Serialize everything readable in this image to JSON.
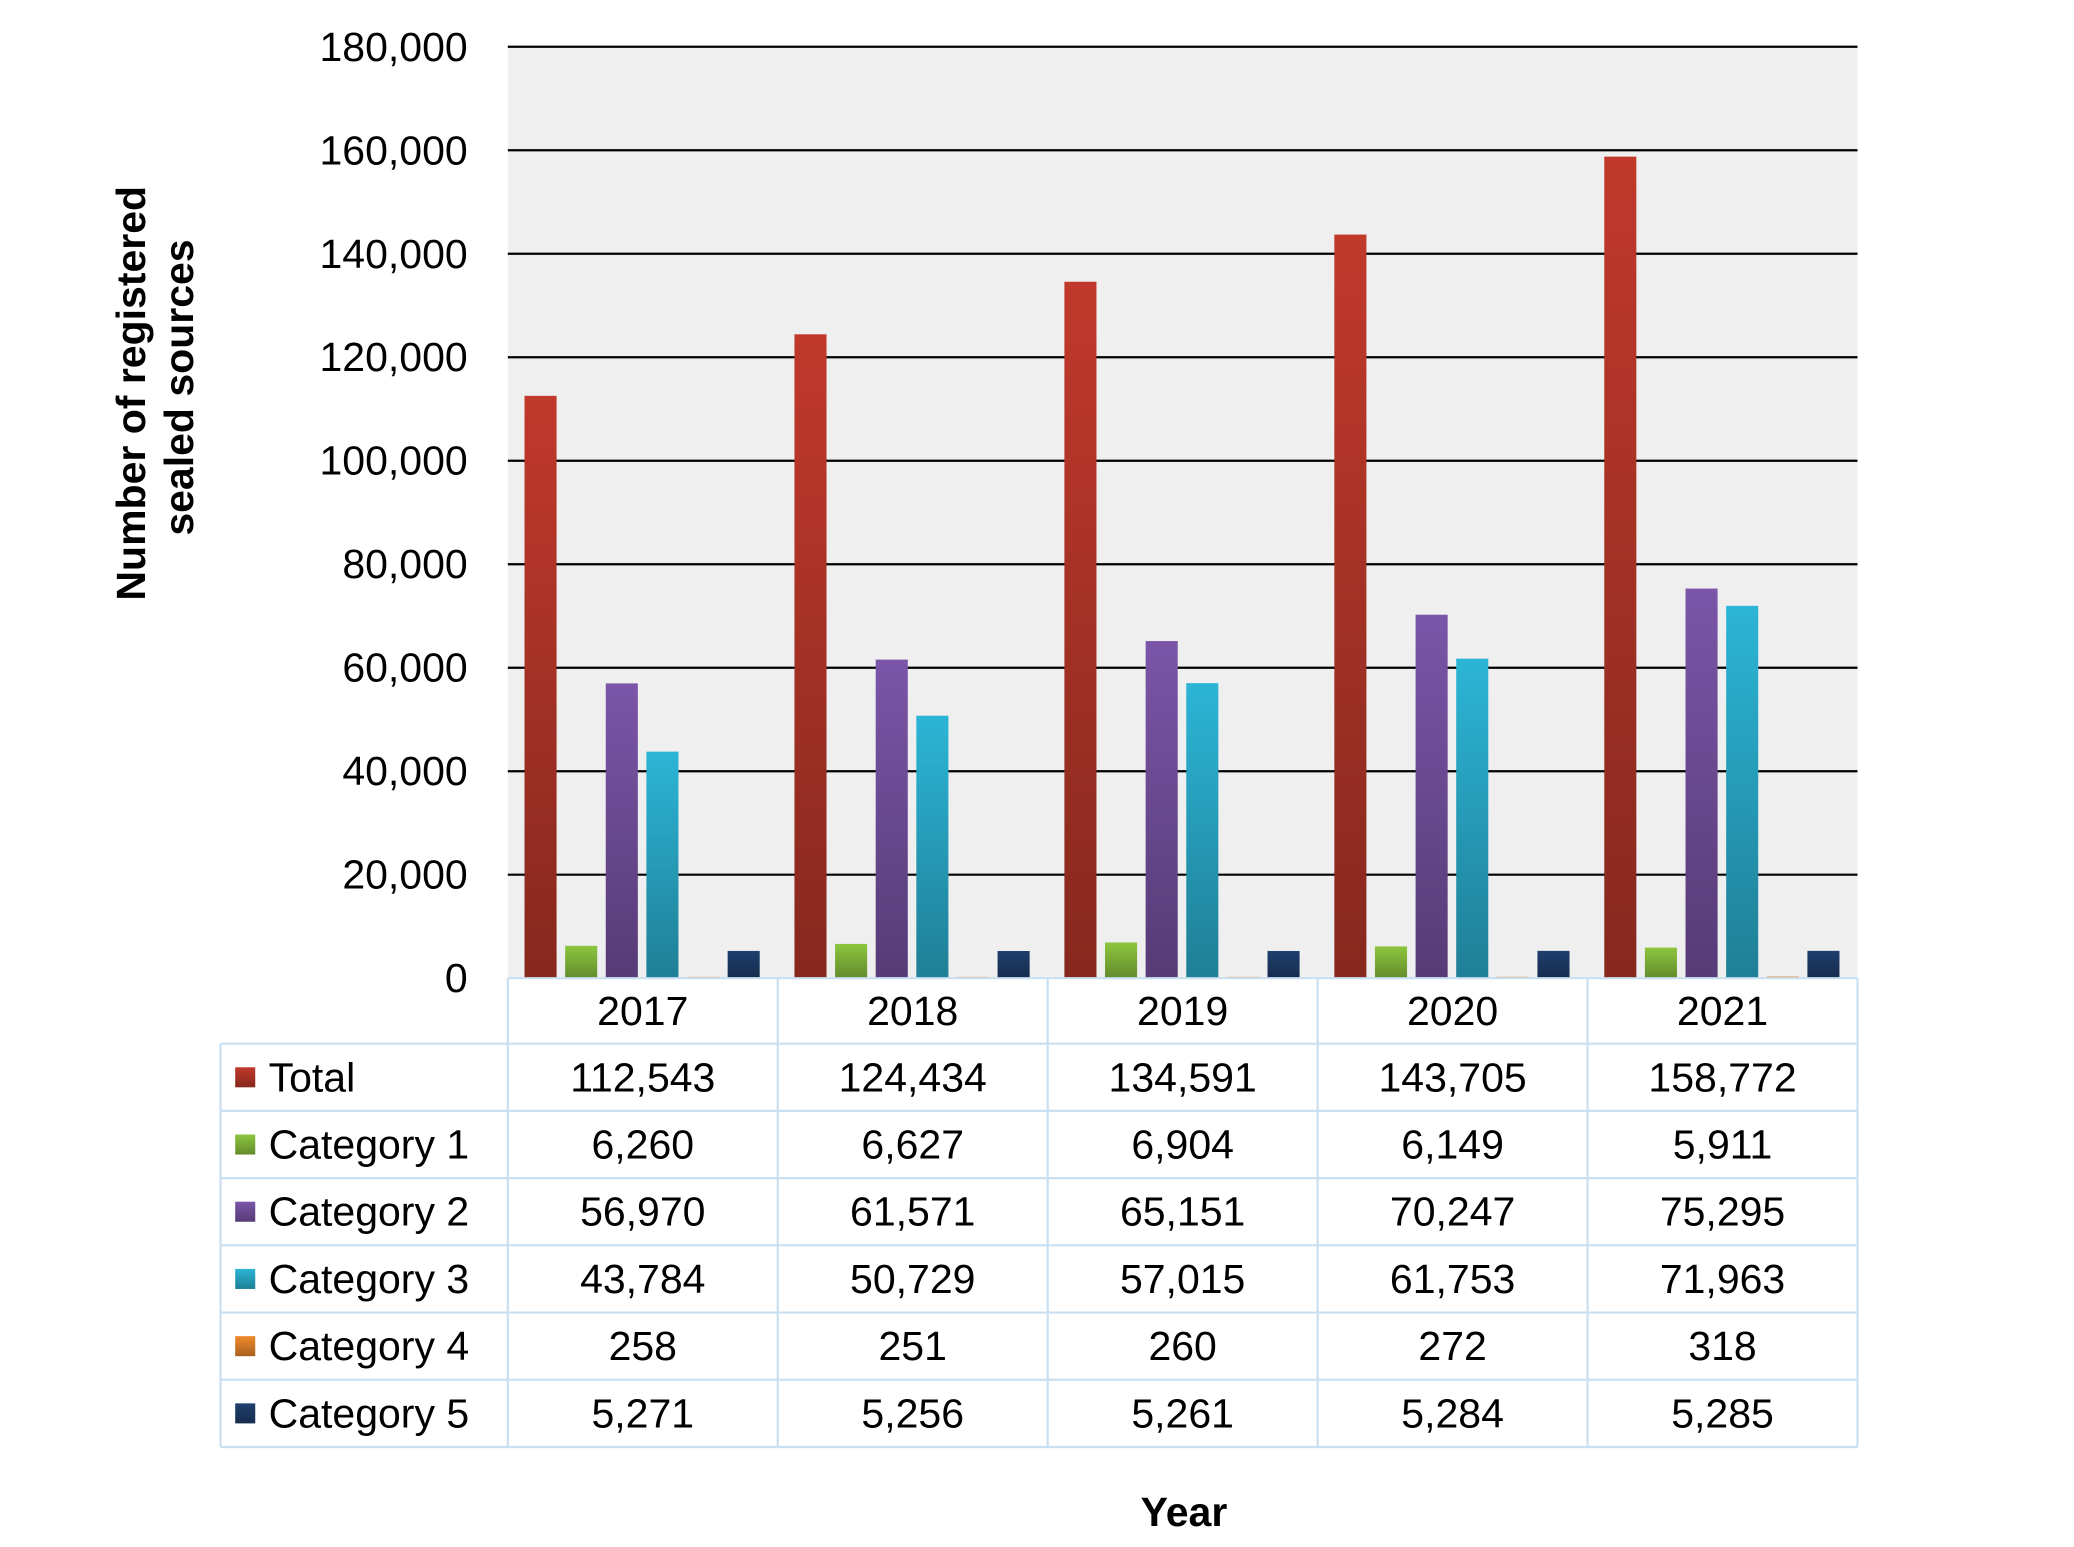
{
  "chart_data": {
    "type": "bar",
    "ylabel_line1": "Number of registered",
    "ylabel_line2": "sealed sources",
    "xlabel": "Year",
    "categories": [
      "2017",
      "2018",
      "2019",
      "2020",
      "2021"
    ],
    "ylim": [
      0,
      180000
    ],
    "yticks": [
      0,
      20000,
      40000,
      60000,
      80000,
      100000,
      120000,
      140000,
      160000,
      180000
    ],
    "ytick_labels": [
      "0",
      "20,000",
      "40,000",
      "60,000",
      "80,000",
      "100,000",
      "120,000",
      "140,000",
      "160,000",
      "180,000"
    ],
    "grid": true,
    "legend_placement": "data table",
    "series": [
      {
        "name": "Total",
        "color": "#c0392b",
        "values": [
          112543,
          124434,
          134591,
          143705,
          158772
        ],
        "labels": [
          "112,543",
          "124,434",
          "134,591",
          "143,705",
          "158,772"
        ]
      },
      {
        "name": "Category 1",
        "color": "#8dc63f",
        "values": [
          6260,
          6627,
          6904,
          6149,
          5911
        ],
        "labels": [
          "6,260",
          "6,627",
          "6,904",
          "6,149",
          "5,911"
        ]
      },
      {
        "name": "Category 2",
        "color": "#7b55a8",
        "values": [
          56970,
          61571,
          65151,
          70247,
          75295
        ],
        "labels": [
          "56,970",
          "61,571",
          "65,151",
          "70,247",
          "75,295"
        ]
      },
      {
        "name": "Category 3",
        "color": "#2cb5d6",
        "values": [
          43784,
          50729,
          57015,
          61753,
          71963
        ],
        "labels": [
          "43,784",
          "50,729",
          "57,015",
          "61,753",
          "71,963"
        ]
      },
      {
        "name": "Category 4",
        "color": "#f0892c",
        "values": [
          258,
          251,
          260,
          272,
          318
        ],
        "labels": [
          "258",
          "251",
          "260",
          "272",
          "318"
        ]
      },
      {
        "name": "Category 5",
        "color": "#1f3f6e",
        "values": [
          5271,
          5256,
          5261,
          5284,
          5285
        ],
        "labels": [
          "5,271",
          "5,256",
          "5,261",
          "5,284",
          "5,285"
        ]
      }
    ],
    "plot_background": "#efefef",
    "table_border_color": "#c9dff2"
  }
}
